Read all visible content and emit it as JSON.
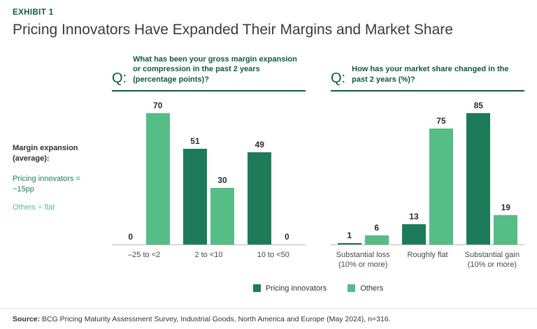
{
  "exhibit": {
    "label": "EXHIBIT 1",
    "title": "Pricing Innovators Have Expanded Their Margins and Market Share"
  },
  "side_note": {
    "heading": "Margin expansion\n(average):",
    "innovators_line": "Pricing innovators = ~15pp",
    "others_line": "Others = flat"
  },
  "legend": {
    "items": [
      {
        "label": "Pricing innovators",
        "color": "#1e7b59"
      },
      {
        "label": "Others",
        "color": "#55bd85"
      }
    ]
  },
  "source": {
    "label": "Source:",
    "text": " BCG Pricing Maturity Assessment Survey, Industrial Goods, North America and Europe (May 2024), n=316."
  },
  "colors": {
    "dark_green": "#1e7b59",
    "light_green": "#55bd85",
    "question_green": "#0e5b3d",
    "title_text": "#3a3a3a"
  },
  "chart_data": [
    {
      "type": "bar",
      "question_prefix": "Q:",
      "title": "What has been your gross margin expansion or compression in the past 2 years (percentage points)?",
      "categories": [
        "–25 to <2",
        "2 to <10",
        "10 to <50"
      ],
      "series": [
        {
          "name": "Pricing innovators",
          "values": [
            0,
            51,
            49
          ]
        },
        {
          "name": "Others",
          "values": [
            70,
            30,
            0
          ]
        }
      ],
      "ylim": [
        0,
        75
      ],
      "grid": false,
      "legend_position": "bottom-center"
    },
    {
      "type": "bar",
      "question_prefix": "Q:",
      "title": "How has your market share changed in the past 2 years (%)?",
      "categories": [
        "Substantial loss (10% or more)",
        "Roughly flat",
        "Substantial gain (10% or more)"
      ],
      "series": [
        {
          "name": "Pricing innovators",
          "values": [
            1,
            13,
            85
          ]
        },
        {
          "name": "Others",
          "values": [
            6,
            75,
            19
          ]
        }
      ],
      "ylim": [
        0,
        90
      ],
      "grid": false,
      "legend_position": "bottom-center"
    }
  ]
}
